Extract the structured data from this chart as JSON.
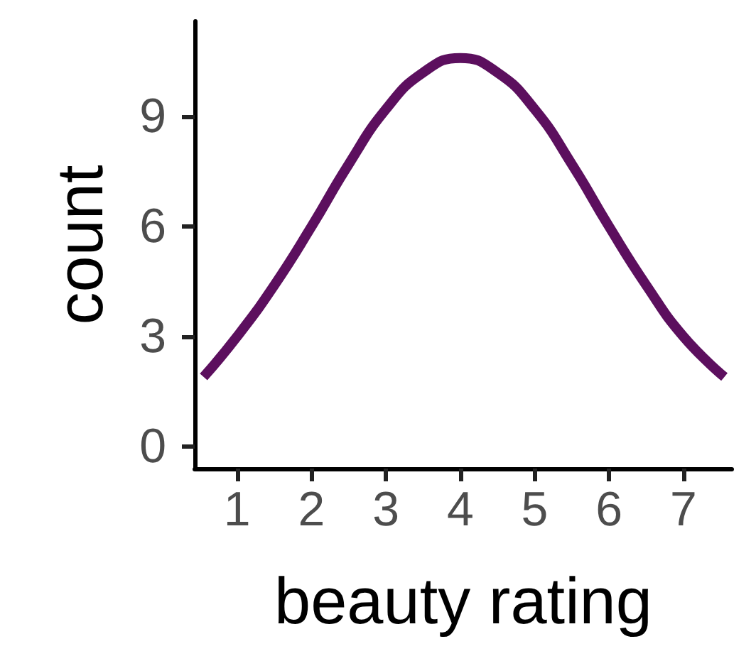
{
  "chart_data": {
    "type": "line",
    "xlabel": "beauty rating",
    "ylabel": "count",
    "x": [
      0.55,
      1,
      1.5,
      2,
      2.5,
      3,
      3.5,
      4,
      4.5,
      5,
      5.5,
      6,
      6.5,
      7,
      7.55
    ],
    "series": [
      {
        "color": "#5c0f5e",
        "values": [
          1.9,
          3.0,
          4.4,
          6.0,
          7.7,
          9.2,
          10.2,
          10.6,
          10.2,
          9.2,
          7.7,
          6.0,
          4.4,
          3.0,
          1.9
        ]
      }
    ],
    "xlim": [
      0.43,
      7.65
    ],
    "ylim": [
      -0.6,
      11.6
    ],
    "xticks": [
      1,
      2,
      3,
      4,
      5,
      6,
      7
    ],
    "yticks": [
      0,
      3,
      6,
      9
    ],
    "marker": "none",
    "line_style": "solid"
  }
}
